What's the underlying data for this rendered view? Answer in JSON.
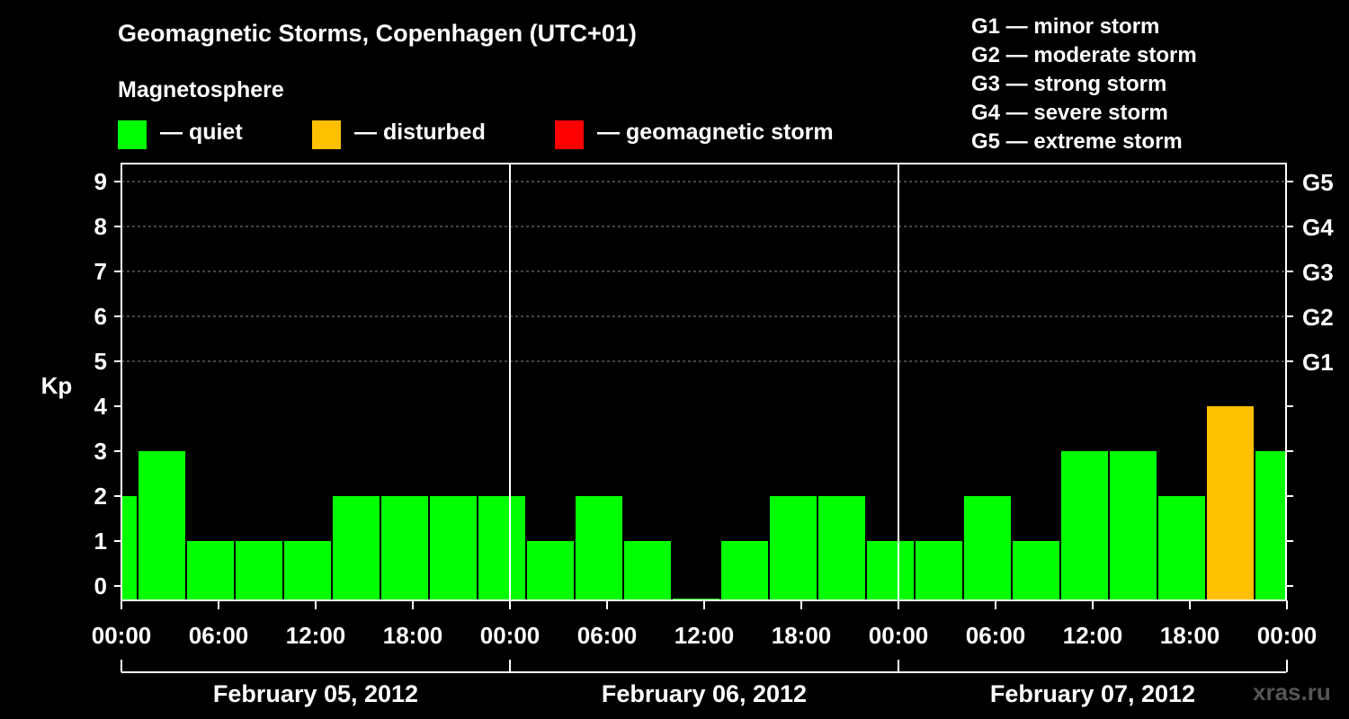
{
  "title": "Geomagnetic Storms, Copenhagen (UTC+01)",
  "subtitle": "Magnetosphere",
  "legend": [
    {
      "label": "— quiet",
      "color": "#00ff00"
    },
    {
      "label": "— disturbed",
      "color": "#ffc000"
    },
    {
      "label": "— geomagnetic storm",
      "color": "#ff0000"
    }
  ],
  "storm_legend": [
    "G1 — minor storm",
    "G2 — moderate storm",
    "G3 — strong storm",
    "G4 — severe storm",
    "G5 — extreme storm"
  ],
  "watermark": "xras.ru",
  "colors": {
    "quiet": "#00ff00",
    "disturbed": "#ffc000",
    "storm": "#ff0000",
    "background": "#000000"
  },
  "chart_data": {
    "type": "bar",
    "ylabel": "Kp",
    "ylim": [
      0,
      9
    ],
    "grid": true,
    "y_ticks": [
      0,
      1,
      2,
      3,
      4,
      5,
      6,
      7,
      8,
      9
    ],
    "right_ticks": [
      {
        "label": "G1",
        "kp": 5
      },
      {
        "label": "G2",
        "kp": 6
      },
      {
        "label": "G3",
        "kp": 7
      },
      {
        "label": "G4",
        "kp": 8
      },
      {
        "label": "G5",
        "kp": 9
      }
    ],
    "x_ticks": [
      "00:00",
      "06:00",
      "12:00",
      "18:00",
      "00:00",
      "06:00",
      "12:00",
      "18:00",
      "00:00",
      "06:00",
      "12:00",
      "18:00",
      "00:00"
    ],
    "days": [
      "February 05, 2012",
      "February 06, 2012",
      "February 07, 2012"
    ],
    "interval_hours": 3,
    "bars": [
      {
        "start": "Feb 04 22:00",
        "kp": 2,
        "level": "quiet"
      },
      {
        "start": "Feb 05 01:00",
        "kp": 3,
        "level": "quiet"
      },
      {
        "start": "Feb 05 04:00",
        "kp": 1,
        "level": "quiet"
      },
      {
        "start": "Feb 05 07:00",
        "kp": 1,
        "level": "quiet"
      },
      {
        "start": "Feb 05 10:00",
        "kp": 1,
        "level": "quiet"
      },
      {
        "start": "Feb 05 13:00",
        "kp": 2,
        "level": "quiet"
      },
      {
        "start": "Feb 05 16:00",
        "kp": 2,
        "level": "quiet"
      },
      {
        "start": "Feb 05 19:00",
        "kp": 2,
        "level": "quiet"
      },
      {
        "start": "Feb 05 22:00",
        "kp": 2,
        "level": "quiet"
      },
      {
        "start": "Feb 06 01:00",
        "kp": 1,
        "level": "quiet"
      },
      {
        "start": "Feb 06 04:00",
        "kp": 2,
        "level": "quiet"
      },
      {
        "start": "Feb 06 07:00",
        "kp": 1,
        "level": "quiet"
      },
      {
        "start": "Feb 06 10:00",
        "kp": 0,
        "level": "quiet"
      },
      {
        "start": "Feb 06 13:00",
        "kp": 1,
        "level": "quiet"
      },
      {
        "start": "Feb 06 16:00",
        "kp": 2,
        "level": "quiet"
      },
      {
        "start": "Feb 06 19:00",
        "kp": 2,
        "level": "quiet"
      },
      {
        "start": "Feb 06 22:00",
        "kp": 1,
        "level": "quiet"
      },
      {
        "start": "Feb 07 01:00",
        "kp": 1,
        "level": "quiet"
      },
      {
        "start": "Feb 07 04:00",
        "kp": 2,
        "level": "quiet"
      },
      {
        "start": "Feb 07 07:00",
        "kp": 1,
        "level": "quiet"
      },
      {
        "start": "Feb 07 10:00",
        "kp": 3,
        "level": "quiet"
      },
      {
        "start": "Feb 07 13:00",
        "kp": 3,
        "level": "quiet"
      },
      {
        "start": "Feb 07 16:00",
        "kp": 2,
        "level": "quiet"
      },
      {
        "start": "Feb 07 19:00",
        "kp": 4,
        "level": "disturbed"
      },
      {
        "start": "Feb 07 22:00",
        "kp": 3,
        "level": "quiet"
      }
    ]
  }
}
